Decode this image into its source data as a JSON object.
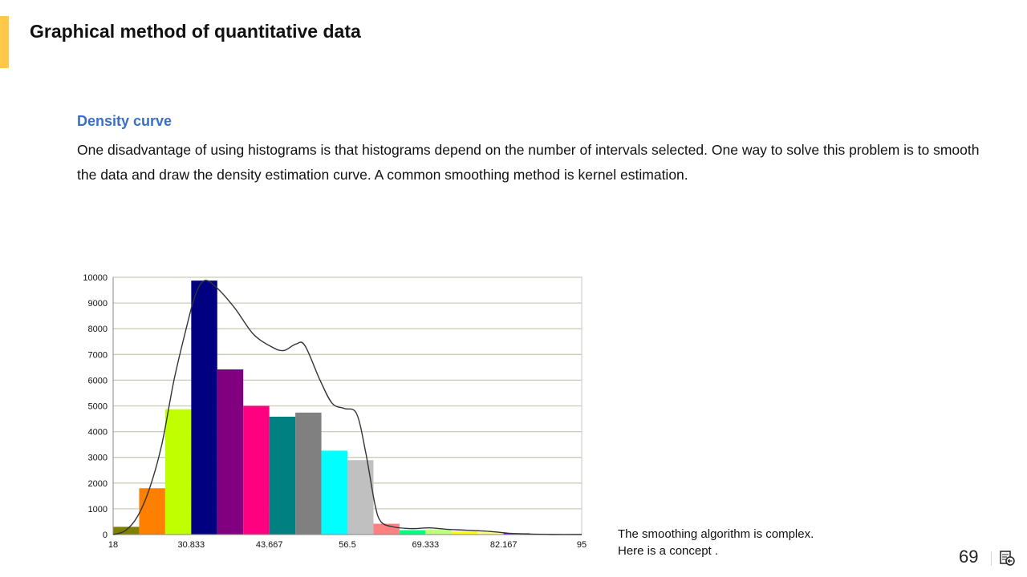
{
  "header": {
    "title": "Graphical method of quantitative data",
    "accent_color": "#ffc84a"
  },
  "section": {
    "heading": "Density curve",
    "body": "One disadvantage of using histograms is that histograms depend on the number of intervals selected. One way to solve this problem is to smooth the data and draw the density estimation curve. A common smoothing method is kernel estimation."
  },
  "note": {
    "line1": "The smoothing algorithm is complex.",
    "line2": "Here is a concept ."
  },
  "footer": {
    "page_number": "69",
    "icon": "slide-return-icon"
  },
  "chart_data": {
    "type": "bar",
    "title": "",
    "xlabel": "",
    "ylabel": "",
    "xlim": [
      18,
      95
    ],
    "ylim": [
      0,
      10000
    ],
    "grid": true,
    "x_ticks": [
      "18",
      "30.833",
      "43.667",
      "56.5",
      "69.333",
      "82.167",
      "95"
    ],
    "x_tick_values": [
      18,
      30.833,
      43.667,
      56.5,
      69.333,
      82.167,
      95
    ],
    "y_ticks": [
      "0",
      "1000",
      "2000",
      "3000",
      "4000",
      "5000",
      "6000",
      "7000",
      "8000",
      "9000",
      "10000"
    ],
    "bin_start": 18,
    "bin_width": 4.2778,
    "values": [
      300,
      1800,
      4870,
      9870,
      6420,
      5000,
      4580,
      4740,
      3260,
      2890,
      420,
      170,
      200,
      120,
      100,
      50,
      0,
      0
    ],
    "colors": [
      "#808000",
      "#ff8000",
      "#c0ff00",
      "#000080",
      "#800080",
      "#ff0080",
      "#008080",
      "#808080",
      "#00ffff",
      "#c0c0c0",
      "#ff8080",
      "#00ff80",
      "#c0ff80",
      "#ffff00",
      "#ffff80",
      "#8000ff",
      "#808080",
      "#808080"
    ],
    "density_curve": [
      [
        18,
        0
      ],
      [
        20,
        150
      ],
      [
        22,
        700
      ],
      [
        24,
        1800
      ],
      [
        26,
        3500
      ],
      [
        28,
        6000
      ],
      [
        30,
        8000
      ],
      [
        31.5,
        9300
      ],
      [
        33,
        9870
      ],
      [
        35,
        9600
      ],
      [
        38,
        8800
      ],
      [
        41,
        7800
      ],
      [
        44,
        7300
      ],
      [
        46,
        7150
      ],
      [
        48,
        7400
      ],
      [
        49.5,
        7350
      ],
      [
        52,
        6000
      ],
      [
        54,
        5100
      ],
      [
        56,
        4900
      ],
      [
        58,
        4700
      ],
      [
        59.5,
        3200
      ],
      [
        61,
        1200
      ],
      [
        62,
        500
      ],
      [
        64,
        300
      ],
      [
        67,
        230
      ],
      [
        70,
        260
      ],
      [
        73,
        200
      ],
      [
        76,
        170
      ],
      [
        80,
        120
      ],
      [
        83,
        50
      ],
      [
        86,
        20
      ],
      [
        90,
        0
      ],
      [
        95,
        0
      ]
    ]
  }
}
